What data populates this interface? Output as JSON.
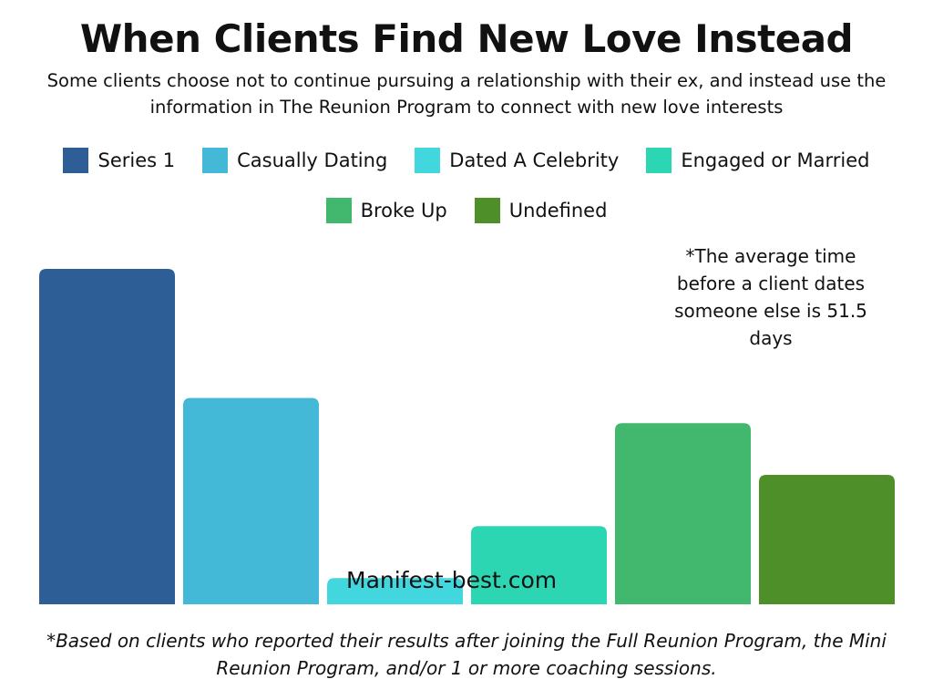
{
  "chart_data": {
    "type": "bar",
    "title": "When Clients Find New Love Instead",
    "subtitle": "Some clients choose not to continue pursuing a relationship with their ex, and instead use the information in The Reunion Program to connect with new love interests",
    "categories": [
      "Series 1",
      "Casually Dating",
      "Dated A Celebrity",
      "Engaged or Married",
      "Broke Up",
      "Undefined"
    ],
    "values": [
      100,
      61.5,
      7.8,
      23.3,
      54,
      38.6
    ],
    "ylim": [
      0,
      100
    ],
    "grid": false,
    "legend_position": "top",
    "legend": [
      {
        "label": "Series 1",
        "color": "#2e5e96"
      },
      {
        "label": "Casually Dating",
        "color": "#43b8d7"
      },
      {
        "label": "Dated A Celebrity",
        "color": "#42d6de"
      },
      {
        "label": "Engaged or Married",
        "color": "#2dd6b2"
      },
      {
        "label": "Broke Up",
        "color": "#41b86e"
      },
      {
        "label": "Undefined",
        "color": "#4e8f2a"
      }
    ],
    "annotations": {
      "note": "*The average time before a client dates someone else is 51.5 days",
      "watermark": "Manifest-best.com",
      "footnote": "*Based on clients who reported their results after joining the Full Reunion Program, the Mini Reunion Program, and/or 1 or more coaching sessions."
    }
  }
}
